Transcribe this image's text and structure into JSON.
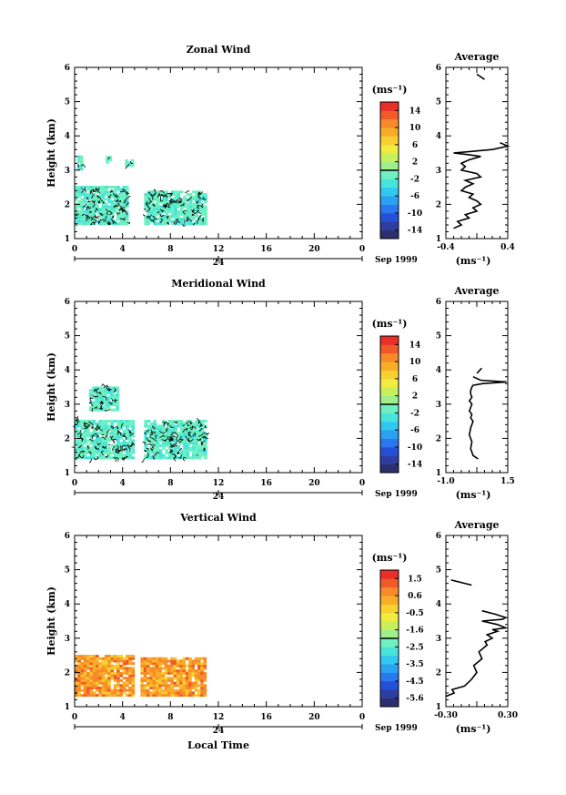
{
  "figure": {
    "date_label": "Sep 1999",
    "x_axis_title": "Local Time",
    "day_marker": "24"
  },
  "chart_data": [
    {
      "type": "heatmap",
      "title": "Zonal Wind",
      "ylabel": "Height (km)",
      "xlabel": "",
      "xlim": [
        0,
        24
      ],
      "ylim": [
        1,
        6
      ],
      "x_ticks": [
        "0",
        "4",
        "8",
        "12",
        "16",
        "20",
        "0"
      ],
      "y_ticks": [
        "1",
        "2",
        "3",
        "4",
        "5",
        "6"
      ],
      "colorbar": {
        "label": "(ms⁻¹)",
        "ticks": [
          "14",
          "10",
          "6",
          "2",
          "-2",
          "-6",
          "-10",
          "-14"
        ],
        "range": [
          -16,
          16
        ]
      },
      "data_regions": [
        {
          "x": [
            0,
            4.5
          ],
          "y": [
            1.4,
            2.5
          ],
          "value": -1.5
        },
        {
          "x": [
            5.8,
            11
          ],
          "y": [
            1.4,
            2.4
          ],
          "value": -1.5
        },
        {
          "x": [
            0.2,
            0.6
          ],
          "y": [
            3.0,
            3.4
          ],
          "value": -1.5
        },
        {
          "x": [
            2.6,
            3.0
          ],
          "y": [
            3.2,
            3.4
          ],
          "value": -1.5
        },
        {
          "x": [
            4.2,
            4.8
          ],
          "y": [
            3.1,
            3.3
          ],
          "value": -1.5
        }
      ]
    },
    {
      "type": "heatmap",
      "title": "Meridional Wind",
      "ylabel": "Height (km)",
      "xlabel": "",
      "xlim": [
        0,
        24
      ],
      "ylim": [
        1,
        6
      ],
      "x_ticks": [
        "0",
        "4",
        "8",
        "12",
        "16",
        "20",
        "0"
      ],
      "y_ticks": [
        "1",
        "2",
        "3",
        "4",
        "5",
        "6"
      ],
      "colorbar": {
        "label": "(ms⁻¹)",
        "ticks": [
          "14",
          "10",
          "6",
          "2",
          "-2",
          "-6",
          "-10",
          "-14"
        ],
        "range": [
          -16,
          16
        ]
      },
      "data_regions": [
        {
          "x": [
            0,
            4.8
          ],
          "y": [
            1.4,
            2.5
          ],
          "value": -1.5
        },
        {
          "x": [
            5.8,
            11
          ],
          "y": [
            1.4,
            2.5
          ],
          "value": -1.5
        },
        {
          "x": [
            1.2,
            3.6
          ],
          "y": [
            2.8,
            3.5
          ],
          "value": -1.5
        }
      ]
    },
    {
      "type": "heatmap",
      "title": "Vertical Wind",
      "ylabel": "Height (km)",
      "xlabel": "Local Time",
      "xlim": [
        0,
        24
      ],
      "ylim": [
        1,
        6
      ],
      "x_ticks": [
        "0",
        "4",
        "8",
        "12",
        "16",
        "20",
        "0"
      ],
      "y_ticks": [
        "1",
        "2",
        "3",
        "4",
        "5",
        "6"
      ],
      "colorbar": {
        "label": "(ms⁻¹)",
        "ticks": [
          "1.5",
          "0.6",
          "-0.5",
          "-1.6",
          "-2.5",
          "-3.5",
          "-4.5",
          "-5.6"
        ],
        "range": [
          -6.0,
          2.0
        ]
      },
      "data_regions": [
        {
          "x": [
            0,
            5
          ],
          "y": [
            1.3,
            2.5
          ],
          "value": 0.5
        },
        {
          "x": [
            5.5,
            11
          ],
          "y": [
            1.3,
            2.4
          ],
          "value": 0.5
        }
      ]
    },
    {
      "type": "line",
      "title": "Average",
      "xlabel": "(ms⁻¹)",
      "xlim": [
        -0.4,
        0.4
      ],
      "ylim": [
        1,
        6
      ],
      "x_ticks": [
        "-0.4",
        "0.4"
      ],
      "y_ticks": [
        "1",
        "2",
        "3",
        "4",
        "5",
        "6"
      ],
      "segments": [
        {
          "x": [
            -0.3,
            -0.2,
            -0.25,
            -0.1,
            -0.15,
            0.0,
            -0.05,
            0.05,
            0.0,
            -0.1,
            -0.05,
            -0.2,
            -0.15,
            -0.05,
            -0.15,
            0.05,
            0.0,
            -0.2,
            -0.15,
            -0.2,
            -0.1,
            0.05,
            -0.1,
            -0.3,
            0.2,
            0.4,
            0.3
          ],
          "y": [
            1.3,
            1.4,
            1.5,
            1.6,
            1.7,
            1.8,
            1.9,
            2.0,
            2.1,
            2.2,
            2.3,
            2.4,
            2.5,
            2.6,
            2.7,
            2.8,
            2.9,
            3.0,
            3.1,
            3.2,
            3.3,
            3.4,
            3.45,
            3.5,
            3.6,
            3.7,
            3.8
          ]
        },
        {
          "x": [
            0.0,
            0.1
          ],
          "y": [
            5.8,
            5.65
          ]
        }
      ]
    },
    {
      "type": "line",
      "title": "Average",
      "xlabel": "(ms⁻¹)",
      "xlim": [
        -1.0,
        1.5
      ],
      "ylim": [
        1,
        6
      ],
      "x_ticks": [
        "-1.0",
        "1.5"
      ],
      "y_ticks": [
        "1",
        "2",
        "3",
        "4",
        "5",
        "6"
      ],
      "segments": [
        {
          "x": [
            0.3,
            0.1,
            0.0,
            0.05,
            -0.05,
            0.0,
            0.1,
            0.0,
            0.05,
            -0.05,
            0.0,
            0.05,
            -0.05,
            0.05,
            0.0,
            0.0,
            0.05,
            0.1,
            0.5,
            1.45,
            0.4,
            0.1
          ],
          "y": [
            1.4,
            1.5,
            1.7,
            1.9,
            2.1,
            2.3,
            2.5,
            2.6,
            2.7,
            2.8,
            2.9,
            3.0,
            3.1,
            3.2,
            3.3,
            3.4,
            3.5,
            3.55,
            3.6,
            3.65,
            3.7,
            3.8
          ]
        },
        {
          "x": [
            0.25,
            0.45
          ],
          "y": [
            3.9,
            4.05
          ]
        }
      ]
    },
    {
      "type": "line",
      "title": "Average",
      "xlabel": "(ms⁻¹)",
      "xlim": [
        -0.3,
        0.3
      ],
      "ylim": [
        1,
        6
      ],
      "x_ticks": [
        "-0.30",
        "0.30"
      ],
      "y_ticks": [
        "1",
        "2",
        "3",
        "4",
        "5",
        "6"
      ],
      "segments": [
        {
          "x": [
            -0.3,
            -0.22,
            -0.24,
            -0.12,
            -0.05,
            0.0,
            -0.03,
            0.05,
            0.02,
            0.1,
            0.08,
            0.15,
            0.1,
            0.2,
            0.15,
            0.28,
            0.2,
            0.05,
            0.25,
            0.28,
            0.18,
            0.05
          ],
          "y": [
            1.3,
            1.4,
            1.5,
            1.6,
            1.8,
            2.0,
            2.2,
            2.4,
            2.6,
            2.8,
            2.9,
            3.0,
            3.1,
            3.2,
            3.25,
            3.3,
            3.4,
            3.5,
            3.55,
            3.6,
            3.7,
            3.8
          ]
        },
        {
          "x": [
            -0.25,
            -0.05,
            -0.05
          ],
          "y": [
            4.7,
            4.55,
            4.55
          ]
        }
      ]
    }
  ]
}
